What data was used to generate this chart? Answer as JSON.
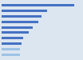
{
  "values": [
    58.9,
    37.2,
    32.3,
    30.0,
    25.4,
    21.9,
    17.7,
    16.3,
    15.2,
    14.8
  ],
  "bar_colors": [
    "#4472c4",
    "#4472c4",
    "#4472c4",
    "#4472c4",
    "#4472c4",
    "#4472c4",
    "#4472c4",
    "#4472c4",
    "#9dc3e6",
    "#9dc3e6"
  ],
  "background_color": "#dce6f1",
  "plot_bg_color": "#dce6f1",
  "xlim": [
    0,
    65
  ]
}
